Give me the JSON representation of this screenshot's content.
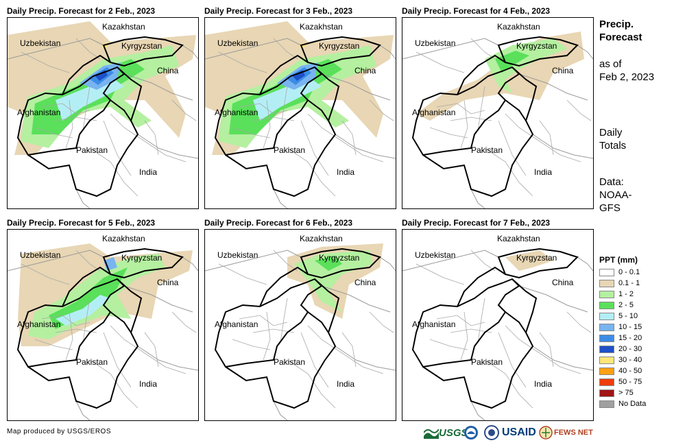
{
  "panels": [
    {
      "title": "Daily Precip. Forecast for 2 Feb., 2023",
      "intensity": "heavy-north-central"
    },
    {
      "title": "Daily Precip. Forecast for 3 Feb., 2023",
      "intensity": "heavy-north-central"
    },
    {
      "title": "Daily Precip. Forecast for 4 Feb., 2023",
      "intensity": "light-north"
    },
    {
      "title": "Daily Precip. Forecast for 5 Feb., 2023",
      "intensity": "moderate-north-central"
    },
    {
      "title": "Daily Precip. Forecast for 6 Feb., 2023",
      "intensity": "light-northeast"
    },
    {
      "title": "Daily Precip. Forecast for 7 Feb., 2023",
      "intensity": "trace"
    }
  ],
  "map_labels": {
    "kazakhstan": "Kazakhstan",
    "uzbekistan": "Uzbekistan",
    "kyrgyzstan": "Kyrgyzstan",
    "china": "China",
    "afghanistan": "Afghanistan",
    "pakistan": "Pakistan",
    "india": "India"
  },
  "side": {
    "title": "Precip. Forecast",
    "asof_label": "as of",
    "asof_date": "Feb 2, 2023",
    "totals": "Daily Totals",
    "data_label": "Data: NOAA-GFS"
  },
  "legend": {
    "title": "PPT (mm)",
    "items": [
      {
        "label": "0 - 0.1",
        "color": "#ffffff"
      },
      {
        "label": "0.1 - 1",
        "color": "#e8d6b4"
      },
      {
        "label": "1 - 2",
        "color": "#b4f0a0"
      },
      {
        "label": "2 - 5",
        "color": "#5ae05a"
      },
      {
        "label": "5 - 10",
        "color": "#b4eef5"
      },
      {
        "label": "10 - 15",
        "color": "#78b4f0"
      },
      {
        "label": "15 - 20",
        "color": "#3c8ce6"
      },
      {
        "label": "20 - 30",
        "color": "#1e50c8"
      },
      {
        "label": "30 - 40",
        "color": "#ffe678"
      },
      {
        "label": "40 - 50",
        "color": "#ffa014"
      },
      {
        "label": "50 - 75",
        "color": "#f03c0a"
      },
      {
        "label": "> 75",
        "color": "#a01414"
      },
      {
        "label": "No Data",
        "color": "#a0a0a0"
      }
    ]
  },
  "credit": "Map produced by USGS/EROS",
  "logos": {
    "usgs": "USGS",
    "usaid": "USAID",
    "fewsnet": "FEWS NET"
  }
}
